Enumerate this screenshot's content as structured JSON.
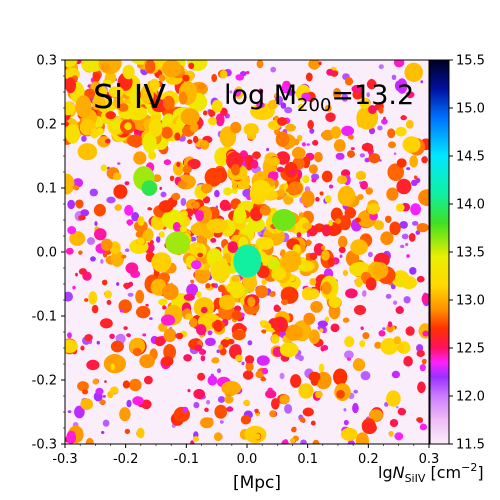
{
  "chart_data": {
    "type": "heatmap",
    "title": "",
    "annotations": {
      "species": "Si IV",
      "mass_prefix": "log M",
      "mass_sub": "200",
      "mass_value": "=13.2"
    },
    "xlabel": "[Mpc]",
    "ylabel": "",
    "xlim": [
      -0.3,
      0.3
    ],
    "ylim": [
      -0.3,
      0.3
    ],
    "x_ticks": [
      "-0.3",
      "-0.2",
      "-0.1",
      "0.0",
      "0.1",
      "0.2",
      "0.3"
    ],
    "y_ticks": [
      "0.3",
      "0.2",
      "0.1",
      "0.0",
      "-0.1",
      "-0.2",
      "-0.3"
    ],
    "x_tick_values": [
      -0.3,
      -0.2,
      -0.1,
      0.0,
      0.1,
      0.2,
      0.3
    ],
    "y_tick_values": [
      0.3,
      0.2,
      0.1,
      0.0,
      -0.1,
      -0.2,
      -0.3
    ],
    "colorbar": {
      "label_prefix": "lg",
      "label_var": "N",
      "label_sub": "SiIV",
      "label_unit": " [cm",
      "label_exp": "−2",
      "label_close": "]",
      "range": [
        11.5,
        15.5
      ],
      "tick_labels": [
        "15.5",
        "15.0",
        "14.5",
        "14.0",
        "13.5",
        "13.0",
        "12.5",
        "12.0",
        "11.5"
      ],
      "tick_values": [
        15.5,
        15.0,
        14.5,
        14.0,
        13.5,
        13.0,
        12.5,
        12.0,
        11.5
      ],
      "colormap": [
        {
          "v": 11.5,
          "c": "#fbeefb"
        },
        {
          "v": 11.75,
          "c": "#efbcf5"
        },
        {
          "v": 12.0,
          "c": "#cc7cff"
        },
        {
          "v": 12.2,
          "c": "#9a30ff"
        },
        {
          "v": 12.35,
          "c": "#ff20ff"
        },
        {
          "v": 12.5,
          "c": "#ff1060"
        },
        {
          "v": 12.7,
          "c": "#ff3000"
        },
        {
          "v": 12.9,
          "c": "#ff9000"
        },
        {
          "v": 13.15,
          "c": "#ffd800"
        },
        {
          "v": 13.45,
          "c": "#e8f000"
        },
        {
          "v": 13.8,
          "c": "#40e020"
        },
        {
          "v": 14.1,
          "c": "#10f0a0"
        },
        {
          "v": 14.5,
          "c": "#00e8ff"
        },
        {
          "v": 14.9,
          "c": "#0070ff"
        },
        {
          "v": 15.2,
          "c": "#0010a0"
        },
        {
          "v": 15.5,
          "c": "#000020"
        }
      ]
    },
    "field": {
      "background": 11.5,
      "central_peak": {
        "x": 0.0,
        "y": -0.015,
        "value": 14.1
      },
      "secondary_peaks": [
        {
          "x": -0.115,
          "y": 0.015,
          "value": 13.6
        },
        {
          "x": 0.06,
          "y": 0.05,
          "value": 13.7
        },
        {
          "x": -0.17,
          "y": 0.115,
          "value": 13.6
        },
        {
          "x": -0.16,
          "y": 0.1,
          "value": 13.9
        }
      ],
      "cluster_scale_mpc": 0.2
    }
  }
}
